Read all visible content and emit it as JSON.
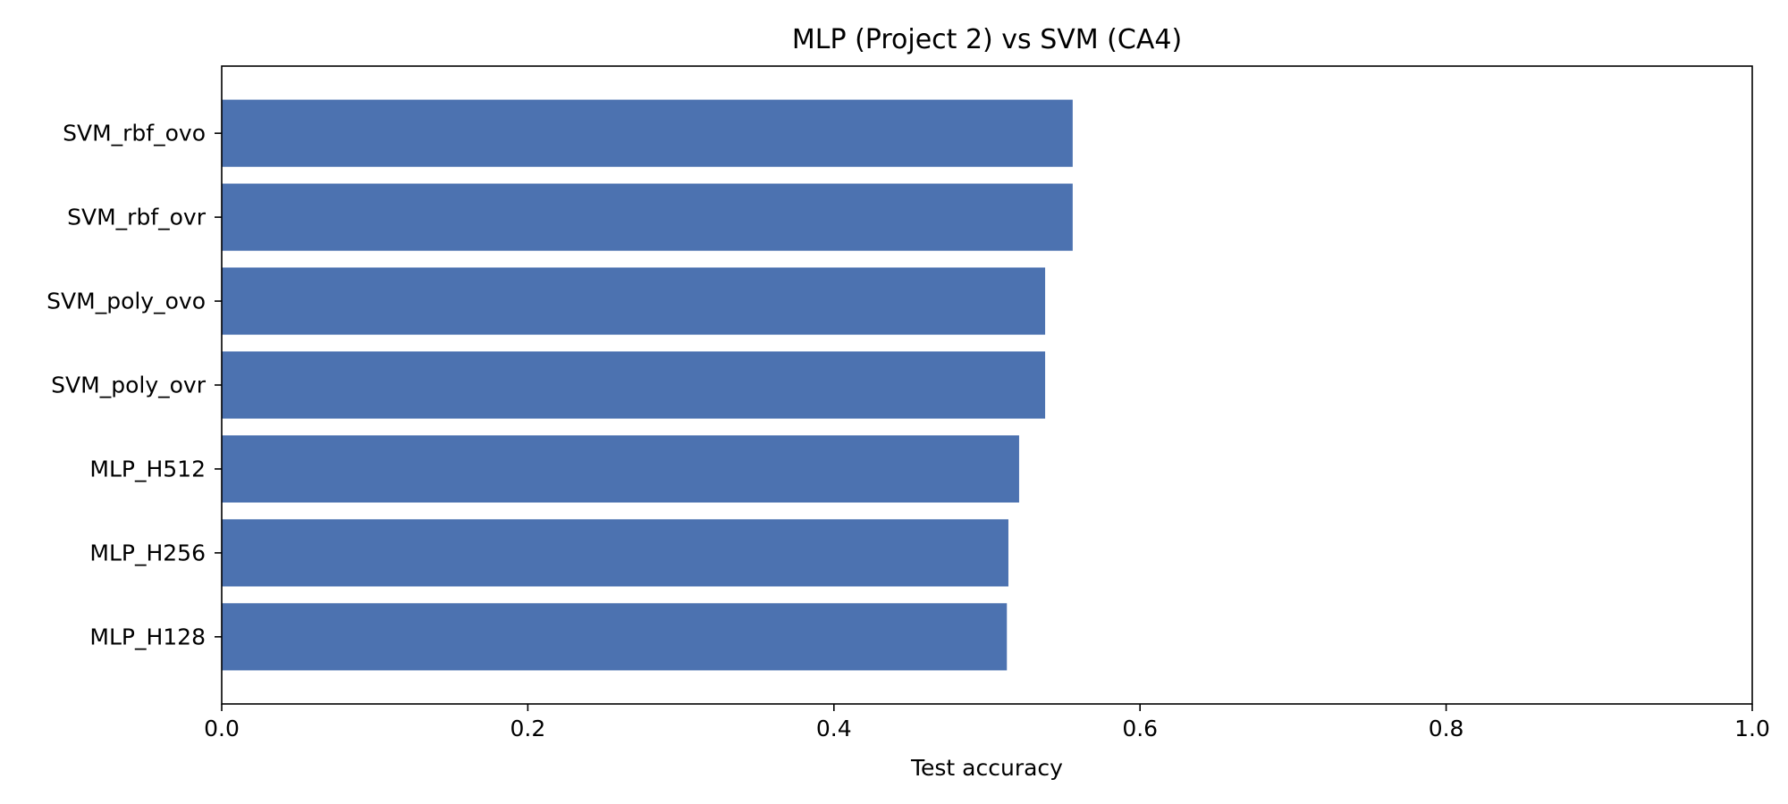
{
  "chart_data": {
    "type": "bar",
    "orientation": "horizontal",
    "title": "MLP (Project 2) vs SVM (CA4)",
    "xlabel": "Test accuracy",
    "ylabel": "",
    "categories": [
      "SVM_rbf_ovo",
      "SVM_rbf_ovr",
      "SVM_poly_ovo",
      "SVM_poly_ovr",
      "MLP_H512",
      "MLP_H256",
      "MLP_H128"
    ],
    "values": [
      0.556,
      0.556,
      0.538,
      0.538,
      0.521,
      0.514,
      0.513
    ],
    "xlim": [
      0,
      1.0
    ],
    "xticks": [
      "0.0",
      "0.2",
      "0.4",
      "0.6",
      "0.8",
      "1.0"
    ],
    "grid": false,
    "bar_color": "#4c72b0"
  }
}
